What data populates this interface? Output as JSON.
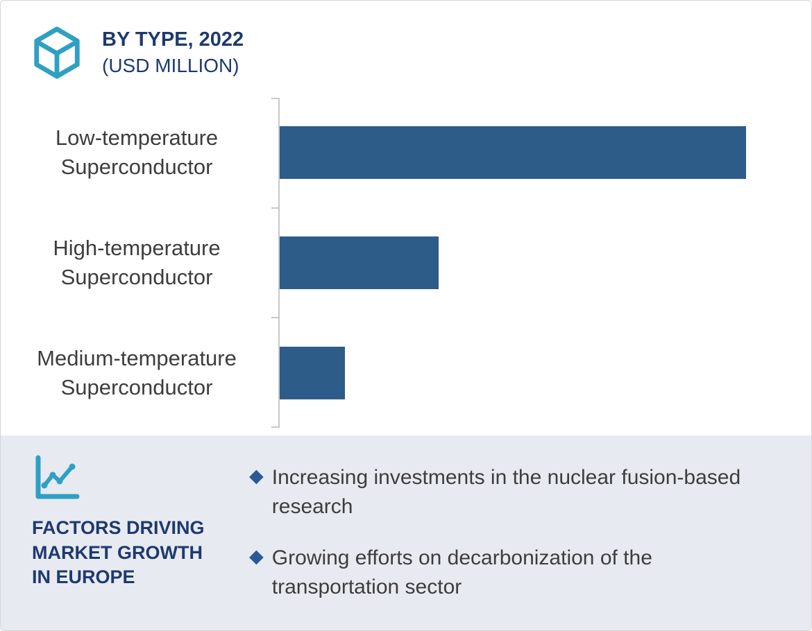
{
  "header": {
    "title_line1": "BY TYPE, 2022",
    "title_line2": "(USD MILLION)"
  },
  "chart_data": {
    "type": "bar",
    "orientation": "horizontal",
    "title": "BY TYPE, 2022 (USD MILLION)",
    "categories": [
      "Low-temperature Superconductor",
      "High-temperature Superconductor",
      "Medium-temperature Superconductor"
    ],
    "values": [
      100,
      34,
      14
    ],
    "units": "USD Million (axis tick values not shown; values estimated as percent of longest bar)",
    "xlabel": "",
    "ylabel": "",
    "grid": false,
    "legend": false,
    "value_labels_visible": false,
    "layout": {
      "max_bar_fraction": 0.955,
      "axis_side": "left"
    }
  },
  "factors": {
    "heading": "FACTORS DRIVING MARKET GROWTH IN EUROPE",
    "bullet_marker": "◆",
    "bullets": [
      "Increasing investments in the nuclear fusion-based research",
      "Growing efforts on decarbonization of the transportation sector"
    ]
  },
  "icons": {
    "logo": "hexagon-logo-icon",
    "factors": "line-chart-icon",
    "bullet": "diamond-bullet-icon"
  },
  "colors": {
    "navy": "#1d3a6e",
    "bar": "#2d5c88",
    "teal": "#2fa0c4",
    "panel": "#e8eaf1",
    "text": "#3d3d3d",
    "axis": "#c8c8c8",
    "diamond": "#2a5a96",
    "border": "#d5d5d5"
  }
}
